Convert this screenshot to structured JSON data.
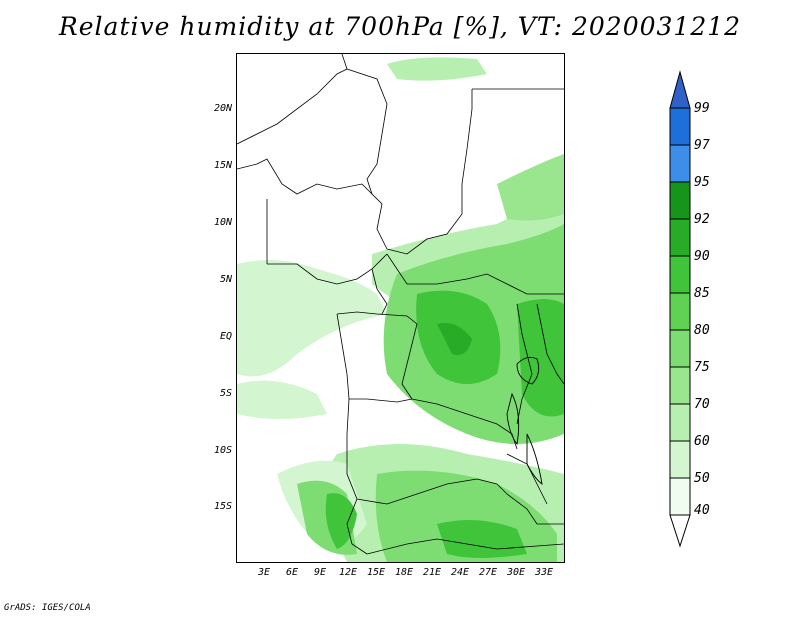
{
  "title": "Relative humidity at 700hPa [%], VT: 2020031212",
  "credit": "GrADS: IGES/COLA",
  "map": {
    "lon_range": [
      0,
      35
    ],
    "lat_range": [
      -20,
      25
    ],
    "lat_ticks": [
      "20N",
      "15N",
      "10N",
      "5N",
      "EQ",
      "5S",
      "10S",
      "15S"
    ],
    "lon_ticks": [
      "3E",
      "6E",
      "9E",
      "12E",
      "15E",
      "18E",
      "21E",
      "24E",
      "27E",
      "30E",
      "33E"
    ]
  },
  "colorbar": {
    "levels": [
      "99",
      "97",
      "95",
      "92",
      "90",
      "85",
      "80",
      "75",
      "70",
      "60",
      "50",
      "40"
    ],
    "colors": {
      "40-50": "#f0fcf0",
      "50-60": "#d3f6d0",
      "60-70": "#b7efb1",
      "70-75": "#99e68f",
      "75-80": "#7edd72",
      "80-85": "#5fd253",
      "85-90": "#3fc43a",
      "90-92": "#28ac28",
      "92-95": "#16951b",
      "95-97": "#3d8ee8",
      "97-99": "#1f6fdb",
      "99+": "#2f61c8"
    }
  }
}
